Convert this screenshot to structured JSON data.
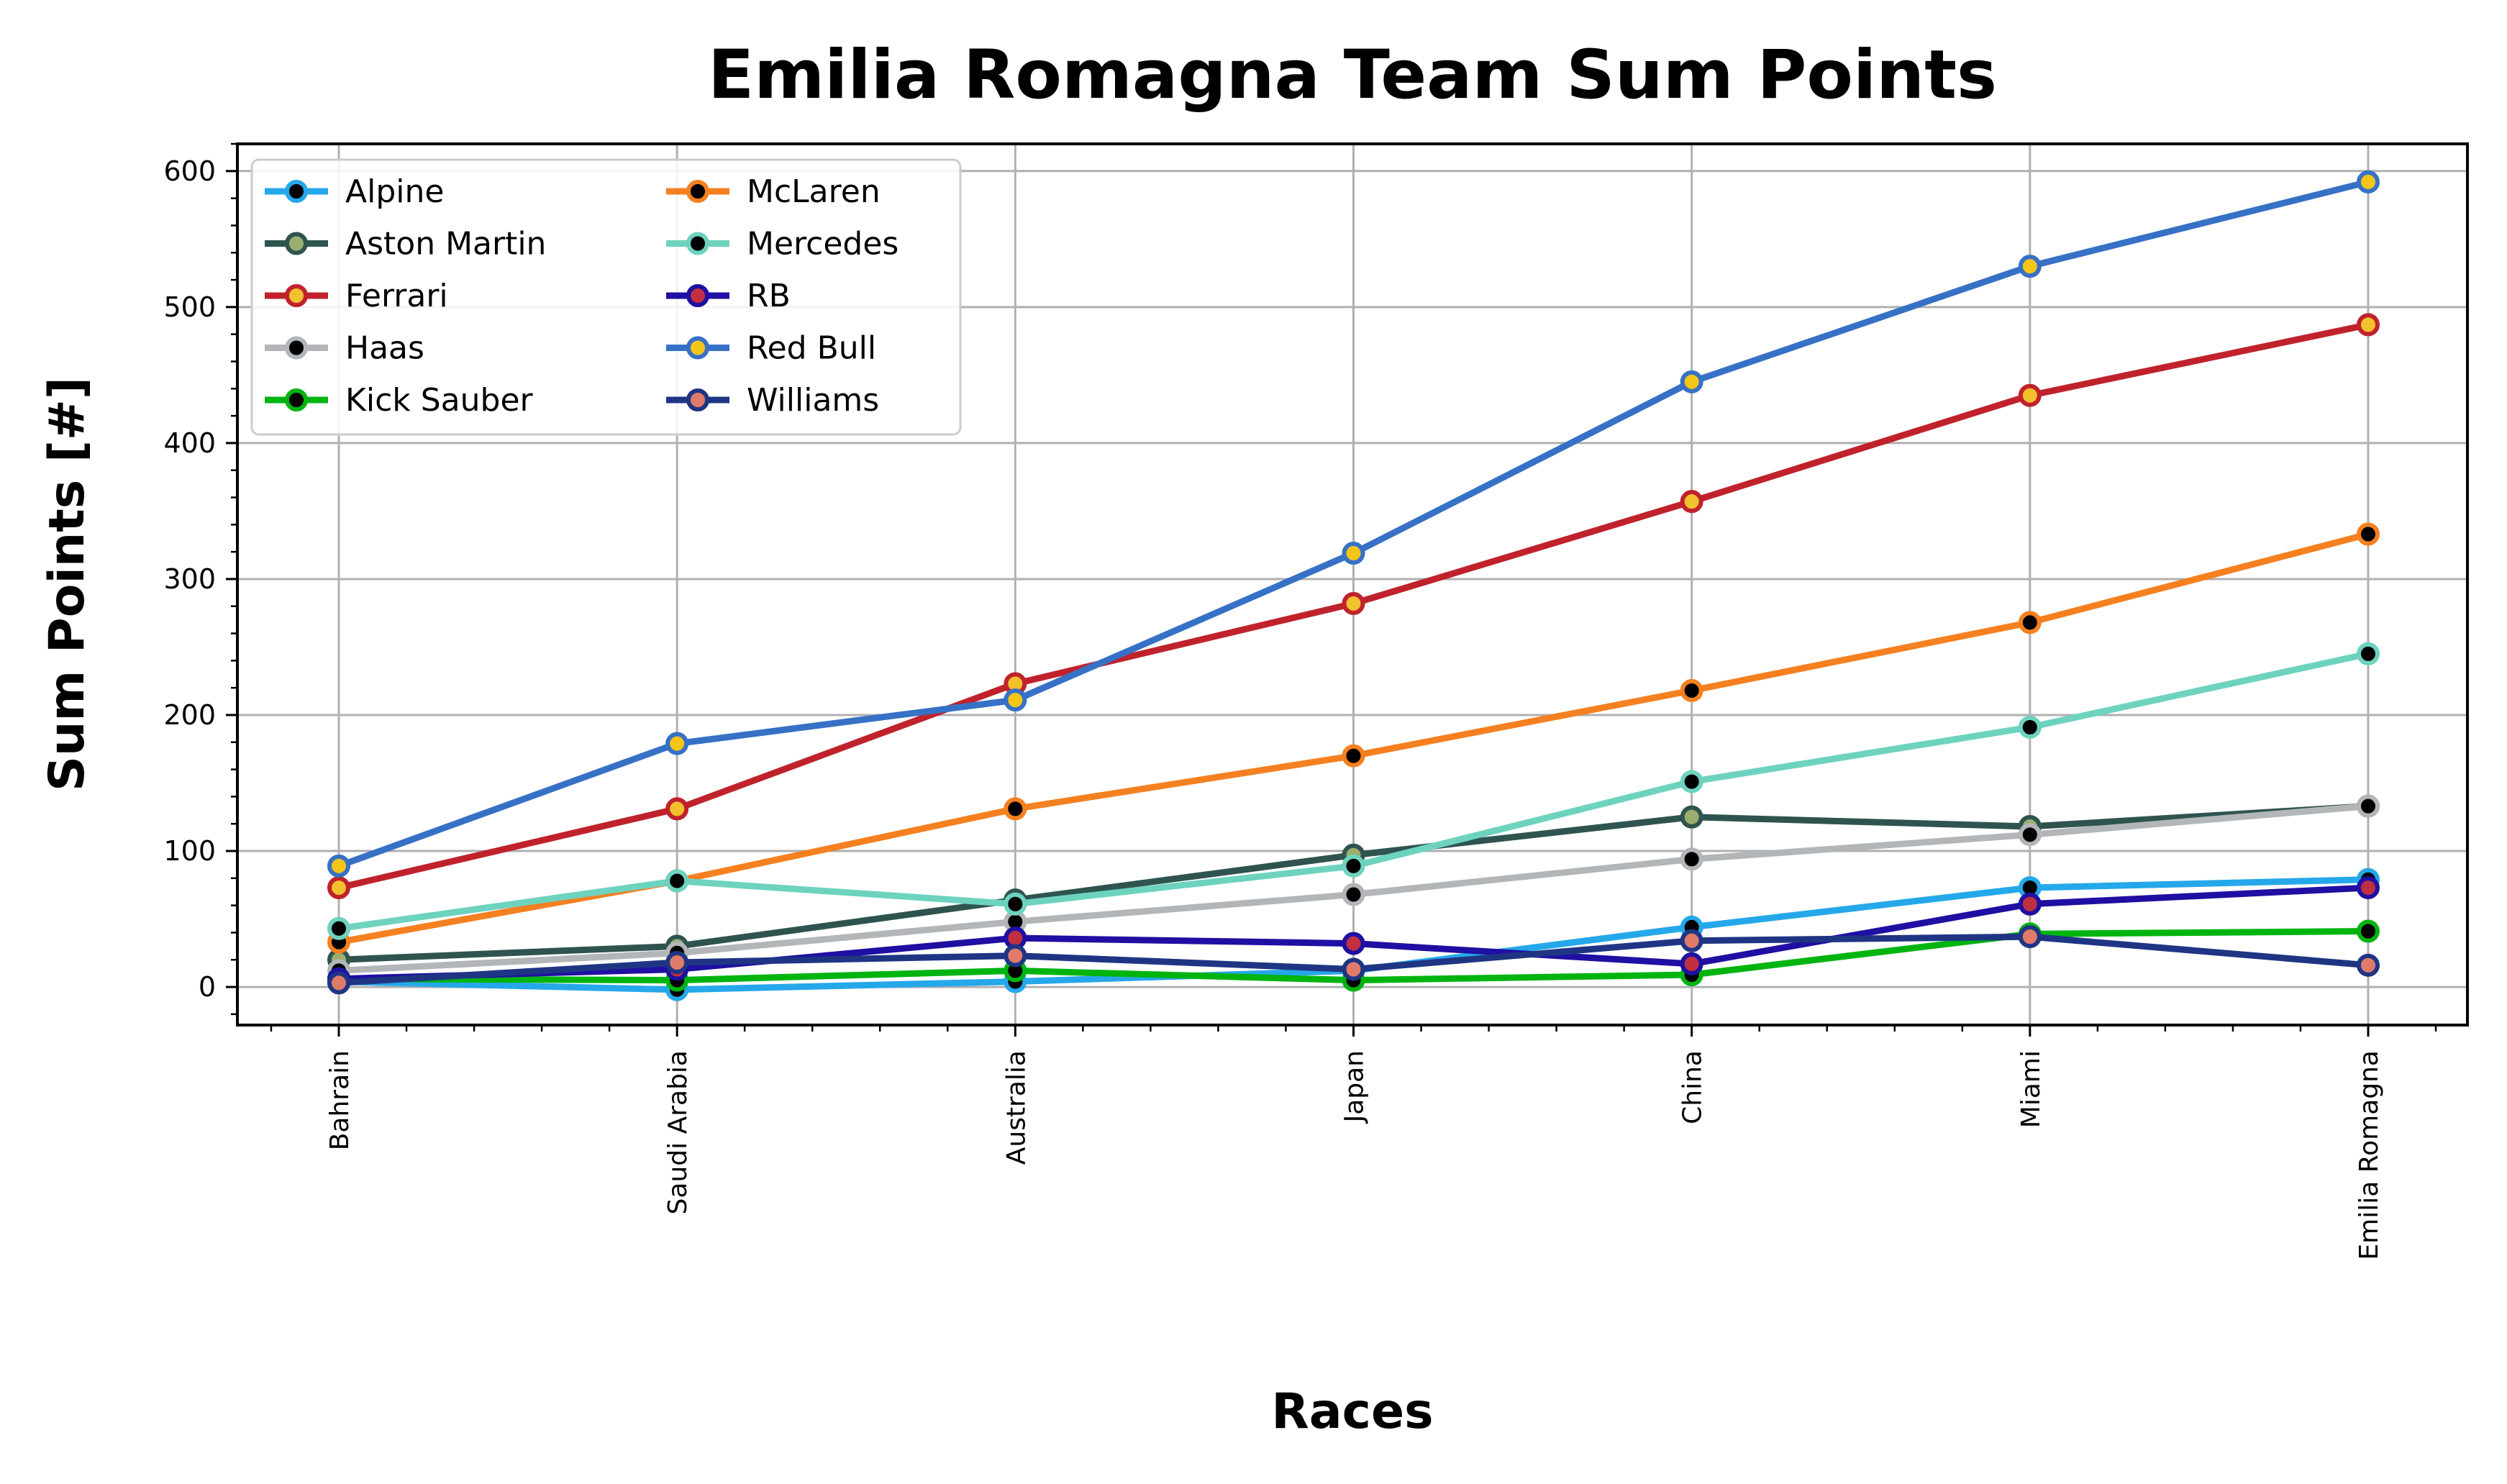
{
  "chart_data": {
    "type": "line",
    "title": "Emilia Romagna Team Sum Points",
    "xlabel": "Races",
    "ylabel": "Sum Points [#]",
    "categories": [
      "Bahrain",
      "Saudi Arabia",
      "Australia",
      "Japan",
      "China",
      "Miami",
      "Emilia Romagna"
    ],
    "ylim": [
      -28,
      620
    ],
    "yticks": [
      0,
      100,
      200,
      300,
      400,
      500,
      600
    ],
    "grid": true,
    "legend_position": "top-left",
    "legend_columns": 2,
    "series": [
      {
        "name": "Alpine",
        "color": "#25a8ea",
        "marker_face": "#000000",
        "values": [
          4,
          -2,
          4,
          12,
          44,
          73,
          79
        ]
      },
      {
        "name": "Aston Martin",
        "color": "#2f5450",
        "marker_face": "#9aaf6e",
        "values": [
          20,
          30,
          64,
          97,
          125,
          118,
          133
        ]
      },
      {
        "name": "Ferrari",
        "color": "#c0222c",
        "marker_face": "#f2c12e",
        "values": [
          73,
          131,
          223,
          282,
          357,
          435,
          487
        ]
      },
      {
        "name": "Haas",
        "color": "#b3b6b9",
        "marker_face": "#000000",
        "values": [
          12,
          25,
          48,
          68,
          94,
          112,
          133
        ]
      },
      {
        "name": "Kick Sauber",
        "color": "#00b410",
        "marker_face": "#000000",
        "values": [
          6,
          5,
          12,
          5,
          9,
          39,
          41
        ]
      },
      {
        "name": "McLaren",
        "color": "#f58020",
        "marker_face": "#000000",
        "values": [
          33,
          78,
          131,
          170,
          218,
          268,
          333
        ]
      },
      {
        "name": "Mercedes",
        "color": "#6dd3bf",
        "marker_face": "#000000",
        "values": [
          43,
          78,
          61,
          89,
          151,
          191,
          245
        ]
      },
      {
        "name": "RB",
        "color": "#1f0fa2",
        "marker_face": "#c03040",
        "values": [
          6,
          13,
          36,
          32,
          17,
          61,
          73
        ]
      },
      {
        "name": "Red Bull",
        "color": "#3671c6",
        "marker_face": "#f5c518",
        "values": [
          89,
          179,
          211,
          319,
          445,
          530,
          592
        ]
      },
      {
        "name": "Williams",
        "color": "#1f3584",
        "marker_face": "#e07b6a",
        "values": [
          3,
          18,
          23,
          13,
          34,
          37,
          16
        ]
      }
    ]
  }
}
